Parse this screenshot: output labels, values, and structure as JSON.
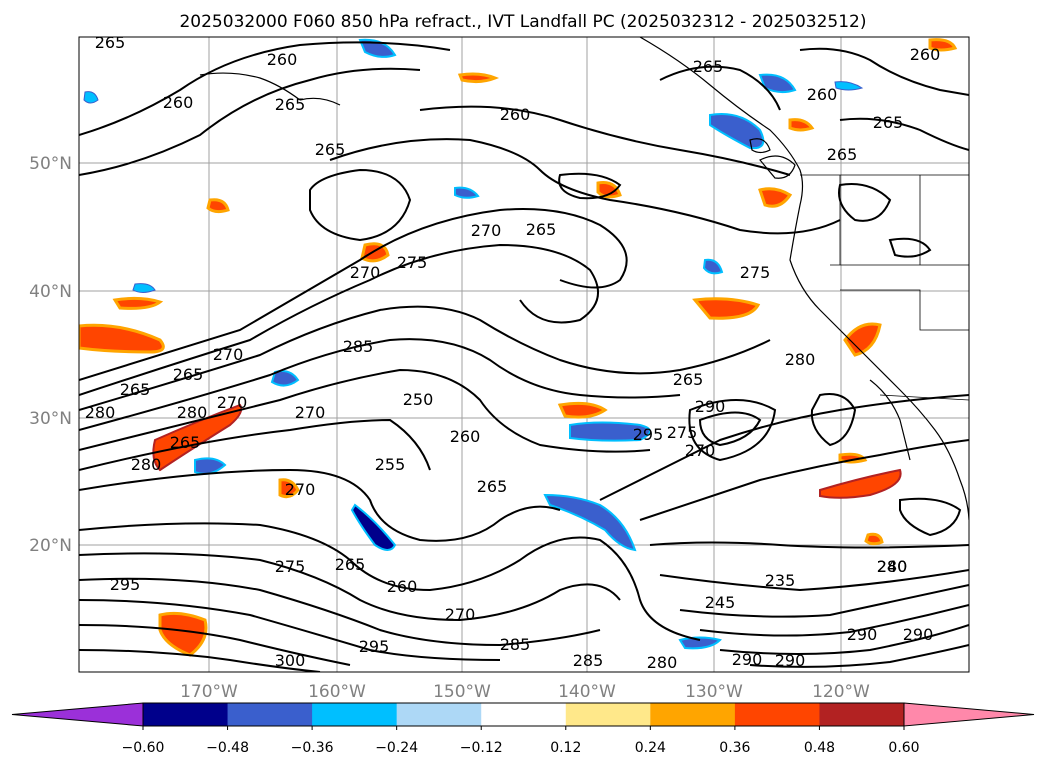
{
  "title": "2025032000 F060 850 hPa refract., IVT Landfall PC (2025032312 - 2025032512)",
  "lat_labels": [
    "50°N",
    "40°N",
    "30°N",
    "20°N"
  ],
  "lon_labels": [
    "170°W",
    "160°W",
    "150°W",
    "140°W",
    "130°W",
    "120°W"
  ],
  "colorbar": {
    "tick_labels": [
      "−0.60",
      "−0.48",
      "−0.36",
      "−0.24",
      "−0.12",
      "0.12",
      "0.24",
      "0.36",
      "0.48",
      "0.60"
    ],
    "colors": [
      "#9b30d9",
      "#00008b",
      "#3a5fcd",
      "#00bfff",
      "#add8f6",
      "#ffffff",
      "#ffe88a",
      "#ffa500",
      "#ff4500",
      "#b22222",
      "#ff88aa",
      "#ff88aa"
    ]
  },
  "contour_labels": [
    "265",
    "260",
    "260",
    "265",
    "260",
    "265",
    "265",
    "260",
    "265",
    "265",
    "260",
    "270",
    "265",
    "270",
    "275",
    "275",
    "270",
    "285",
    "265",
    "270",
    "265",
    "280",
    "280",
    "265",
    "280",
    "280",
    "290",
    "295",
    "260",
    "255",
    "270",
    "265",
    "250",
    "270",
    "275",
    "270",
    "275",
    "265",
    "260",
    "270",
    "285",
    "285",
    "280",
    "290",
    "290",
    "290",
    "290",
    "295",
    "300",
    "295",
    "280",
    "240",
    "235",
    "245",
    "265"
  ],
  "colors": {
    "warm": "#ff4500",
    "cool": "#3a5fcd"
  }
}
